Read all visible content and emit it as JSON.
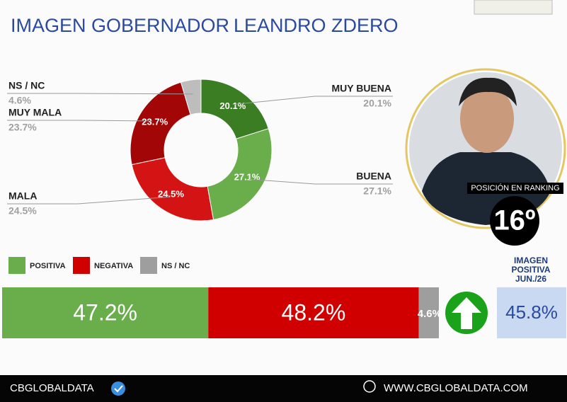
{
  "header": {
    "title": "IMAGEN GOBERNADOR",
    "subtitle": "LEANDRO ZDERO"
  },
  "chart_data": [
    {
      "type": "pie",
      "donut": true,
      "categories": [
        "MUY BUENA",
        "BUENA",
        "MALA",
        "MUY MALA",
        "NS / NC"
      ],
      "values": [
        20.1,
        27.1,
        24.5,
        23.7,
        4.6
      ],
      "value_labels": [
        "20.1%",
        "27.1%",
        "24.5%",
        "23.7%",
        "4.6%"
      ],
      "colors": [
        "#3b7d22",
        "#6aad4b",
        "#d41414",
        "#a30606",
        "#bdbdbd"
      ]
    },
    {
      "type": "stacked-bar",
      "series": [
        {
          "name": "POSITIVA",
          "color": "#6aad4b",
          "values": [
            47.2
          ],
          "value_labels": [
            "47.2%"
          ]
        },
        {
          "name": "NEGATIVA",
          "color": "#d10000",
          "values": [
            48.2
          ],
          "value_labels": [
            "48.2%"
          ]
        },
        {
          "name": "NS / NC",
          "color": "#9e9e9e",
          "values": [
            4.6
          ],
          "value_labels": [
            "4.6%"
          ]
        }
      ]
    }
  ],
  "ranking": {
    "label": "POSICIÓN EN RANKING",
    "position": "16º"
  },
  "positive_image": {
    "label_lines": [
      "IMAGEN",
      "POSITIVA",
      "JUN./26"
    ],
    "value": "45.8%"
  },
  "footer": {
    "brand": "CBGLOBALDATA",
    "website": "WWW.CBGLOBALDATA.COM"
  }
}
